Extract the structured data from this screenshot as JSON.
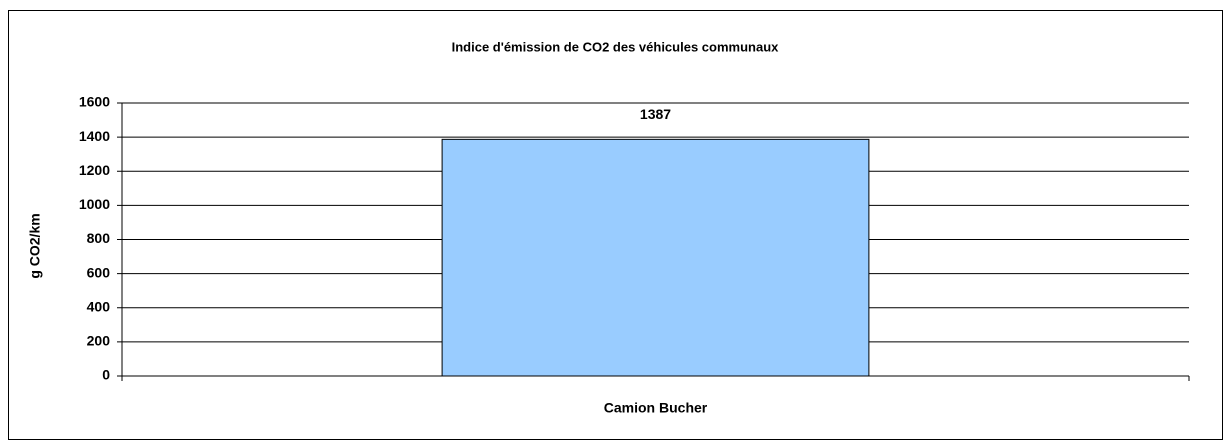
{
  "chart_data": {
    "type": "bar",
    "title": "Indice d'émission de CO2 des véhicules communaux",
    "ylabel": "g CO2/km",
    "categories": [
      "Camion Bucher"
    ],
    "values": [
      1387
    ],
    "color": "#99ccff",
    "ylim": [
      0,
      1600
    ],
    "yticks": [
      0,
      200,
      400,
      600,
      800,
      1000,
      1200,
      1400,
      1600
    ],
    "grid": true
  }
}
